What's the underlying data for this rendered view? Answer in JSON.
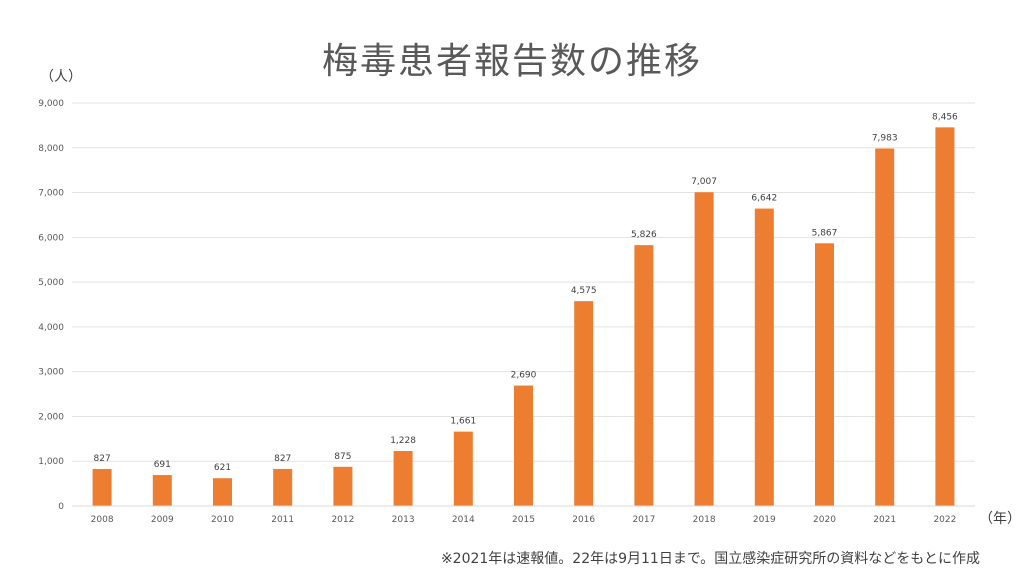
{
  "chart_data": {
    "type": "bar",
    "title": "梅毒患者報告数の推移",
    "ylabel": "（人）",
    "xlabel": "（年）",
    "categories": [
      "2008",
      "2009",
      "2010",
      "2011",
      "2012",
      "2013",
      "2014",
      "2015",
      "2016",
      "2017",
      "2018",
      "2019",
      "2020",
      "2021",
      "2022"
    ],
    "values": [
      827,
      691,
      621,
      827,
      875,
      1228,
      1661,
      2690,
      4575,
      5826,
      7007,
      6642,
      5867,
      7983,
      8456
    ],
    "value_labels": [
      "827",
      "691",
      "621",
      "827",
      "875",
      "1,228",
      "1,661",
      "2,690",
      "4,575",
      "5,826",
      "7,007",
      "6,642",
      "5,867",
      "7,983",
      "8,456"
    ],
    "ylim": [
      0,
      9000
    ],
    "yticks": [
      "0",
      "1,000",
      "2,000",
      "3,000",
      "4,000",
      "5,000",
      "6,000",
      "7,000",
      "8,000",
      "9,000"
    ],
    "ytick_values": [
      0,
      1000,
      2000,
      3000,
      4000,
      5000,
      6000,
      7000,
      8000,
      9000
    ],
    "grid": true,
    "bar_color": "#ED7D31",
    "footnote": "※2021年は速報値。22年は9月11日まで。国立感染症研究所の資料などをもとに作成"
  }
}
